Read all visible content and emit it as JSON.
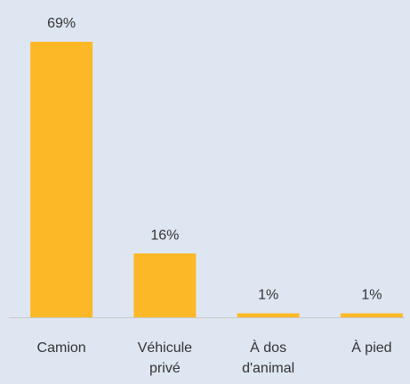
{
  "chart_data": {
    "type": "bar",
    "categories": [
      "Camion",
      "Véhicule privé",
      "À dos d'animal",
      "À pied"
    ],
    "values": [
      69,
      16,
      1,
      1
    ],
    "value_labels": [
      "69%",
      "16%",
      "1%",
      "1%"
    ],
    "color": "#fdb827"
  }
}
